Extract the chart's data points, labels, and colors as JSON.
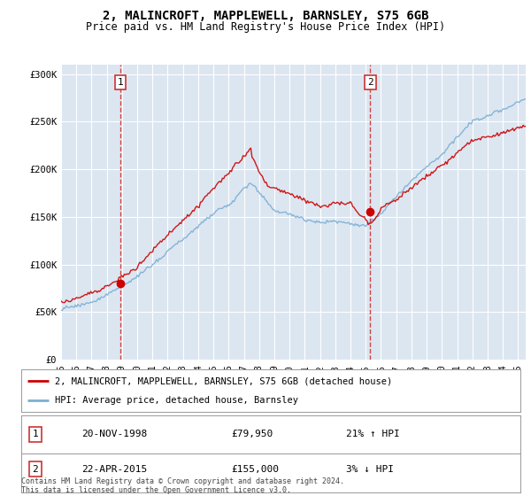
{
  "title": "2, MALINCROFT, MAPPLEWELL, BARNSLEY, S75 6GB",
  "subtitle": "Price paid vs. HM Land Registry's House Price Index (HPI)",
  "background_color": "#dce6f1",
  "plot_bg_color": "#dce6f1",
  "ylabel_ticks": [
    "£0",
    "£50K",
    "£100K",
    "£150K",
    "£200K",
    "£250K",
    "£300K"
  ],
  "ytick_values": [
    0,
    50000,
    100000,
    150000,
    200000,
    250000,
    300000
  ],
  "ylim": [
    0,
    310000
  ],
  "xlim_start": 1995.0,
  "xlim_end": 2025.5,
  "sale1_date_x": 1998.9,
  "sale1_price": 79950,
  "sale2_date_x": 2015.3,
  "sale2_price": 155000,
  "sale1_date_str": "20-NOV-1998",
  "sale1_price_str": "£79,950",
  "sale1_hpi_str": "21% ↑ HPI",
  "sale2_date_str": "22-APR-2015",
  "sale2_price_str": "£155,000",
  "sale2_hpi_str": "3% ↓ HPI",
  "legend_line1": "2, MALINCROFT, MAPPLEWELL, BARNSLEY, S75 6GB (detached house)",
  "legend_line2": "HPI: Average price, detached house, Barnsley",
  "footer": "Contains HM Land Registry data © Crown copyright and database right 2024.\nThis data is licensed under the Open Government Licence v3.0.",
  "red_line_color": "#cc0000",
  "blue_line_color": "#7bafd4",
  "box_color": "#cc3333",
  "dashed_line_color": "#cc3333",
  "grid_color": "white",
  "font_family": "monospace"
}
